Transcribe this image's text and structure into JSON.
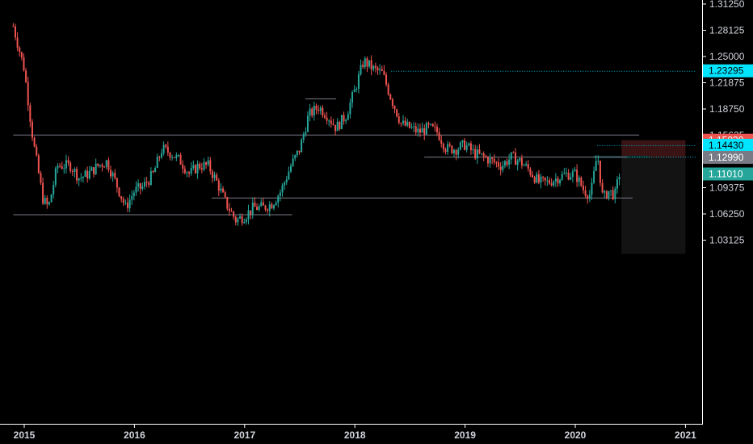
{
  "chart_data": {
    "type": "candlestick",
    "title": "",
    "xlabel": "",
    "ylabel": "",
    "ylim": [
      1.015,
      1.3125
    ],
    "xlim": [
      2014.9,
      2021.1
    ],
    "y_ticks": [
      "1.31250",
      "1.28125",
      "1.25000",
      "1.21875",
      "1.18750",
      "1.15625",
      "1.09375",
      "1.06250",
      "1.03125"
    ],
    "x_ticks": [
      "2015",
      "2016",
      "2017",
      "2018",
      "2019",
      "2020",
      "2021"
    ],
    "colors": {
      "up": "#26a69a",
      "down": "#ef5350",
      "background": "#000000",
      "axis_line": "#ffffff",
      "level_line": "#787b86",
      "dotted_line": "#00bcd4",
      "future_zone": "#131313",
      "stop_zone": "#3a1414",
      "target_zone": "#0d2b29"
    },
    "price_path": [
      [
        2014.9,
        1.286
      ],
      [
        2015.0,
        1.235
      ],
      [
        2015.08,
        1.15
      ],
      [
        2015.17,
        1.08
      ],
      [
        2015.22,
        1.07
      ],
      [
        2015.3,
        1.12
      ],
      [
        2015.42,
        1.12
      ],
      [
        2015.5,
        1.105
      ],
      [
        2015.58,
        1.11
      ],
      [
        2015.67,
        1.12
      ],
      [
        2015.75,
        1.125
      ],
      [
        2015.83,
        1.1
      ],
      [
        2015.92,
        1.07
      ],
      [
        2016.0,
        1.09
      ],
      [
        2016.08,
        1.095
      ],
      [
        2016.17,
        1.11
      ],
      [
        2016.25,
        1.14
      ],
      [
        2016.33,
        1.135
      ],
      [
        2016.42,
        1.125
      ],
      [
        2016.5,
        1.11
      ],
      [
        2016.58,
        1.12
      ],
      [
        2016.67,
        1.12
      ],
      [
        2016.75,
        1.1
      ],
      [
        2016.83,
        1.075
      ],
      [
        2016.92,
        1.055
      ],
      [
        2017.0,
        1.06
      ],
      [
        2017.08,
        1.07
      ],
      [
        2017.17,
        1.07
      ],
      [
        2017.25,
        1.075
      ],
      [
        2017.33,
        1.09
      ],
      [
        2017.42,
        1.12
      ],
      [
        2017.5,
        1.14
      ],
      [
        2017.58,
        1.18
      ],
      [
        2017.67,
        1.19
      ],
      [
        2017.75,
        1.18
      ],
      [
        2017.83,
        1.165
      ],
      [
        2017.92,
        1.18
      ],
      [
        2018.0,
        1.21
      ],
      [
        2018.08,
        1.245
      ],
      [
        2018.17,
        1.235
      ],
      [
        2018.25,
        1.23
      ],
      [
        2018.33,
        1.2
      ],
      [
        2018.42,
        1.17
      ],
      [
        2018.5,
        1.165
      ],
      [
        2018.58,
        1.16
      ],
      [
        2018.67,
        1.165
      ],
      [
        2018.75,
        1.16
      ],
      [
        2018.83,
        1.14
      ],
      [
        2018.92,
        1.14
      ],
      [
        2019.0,
        1.145
      ],
      [
        2019.08,
        1.135
      ],
      [
        2019.17,
        1.13
      ],
      [
        2019.25,
        1.125
      ],
      [
        2019.33,
        1.12
      ],
      [
        2019.42,
        1.13
      ],
      [
        2019.5,
        1.125
      ],
      [
        2019.58,
        1.115
      ],
      [
        2019.67,
        1.1
      ],
      [
        2019.75,
        1.1
      ],
      [
        2019.83,
        1.105
      ],
      [
        2019.92,
        1.11
      ],
      [
        2020.0,
        1.11
      ],
      [
        2020.08,
        1.09
      ],
      [
        2020.14,
        1.085
      ],
      [
        2020.2,
        1.135
      ],
      [
        2020.25,
        1.08
      ],
      [
        2020.3,
        1.09
      ],
      [
        2020.36,
        1.085
      ],
      [
        2020.4,
        1.1101
      ]
    ],
    "price_labels": [
      {
        "price": 1.1503,
        "text": "1.15030",
        "style": "red"
      },
      {
        "price": 1.1443,
        "text": "1.14430",
        "style": "cyan"
      },
      {
        "price": 1.1306,
        "text": "1.13060",
        "style": "cyan"
      },
      {
        "price": 1.1299,
        "text": "1.12990",
        "style": "gray"
      },
      {
        "price": 1.1101,
        "text": "1.11010",
        "style": "teal"
      },
      {
        "price": 1.23295,
        "text": "1.23295",
        "style": "cyan"
      }
    ],
    "horizontal_levels": [
      {
        "price": 1.157,
        "x_from": 2014.9,
        "x_to": 2020.58,
        "style": "solid"
      },
      {
        "price": 1.062,
        "x_from": 2014.9,
        "x_to": 2017.43,
        "style": "solid"
      },
      {
        "price": 1.082,
        "x_from": 2016.7,
        "x_to": 2020.52,
        "style": "solid"
      },
      {
        "price": 1.2,
        "x_from": 2017.55,
        "x_to": 2017.83,
        "style": "solid"
      },
      {
        "price": 1.1306,
        "x_from": 2018.63,
        "x_to": 2020.47,
        "style": "solid"
      },
      {
        "price": 1.23295,
        "x_from": 2018.33,
        "x_to": 2021.1,
        "style": "dotted"
      },
      {
        "price": 1.1443,
        "x_from": 2020.2,
        "x_to": 2021.1,
        "style": "dotted"
      },
      {
        "price": 1.1306,
        "x_from": 2020.47,
        "x_to": 2021.1,
        "style": "dotted"
      }
    ],
    "position_tool": {
      "x_from": 2020.42,
      "x_to": 2021.0,
      "entry": 1.1299,
      "stop": 1.1503,
      "target": 1.015
    }
  }
}
